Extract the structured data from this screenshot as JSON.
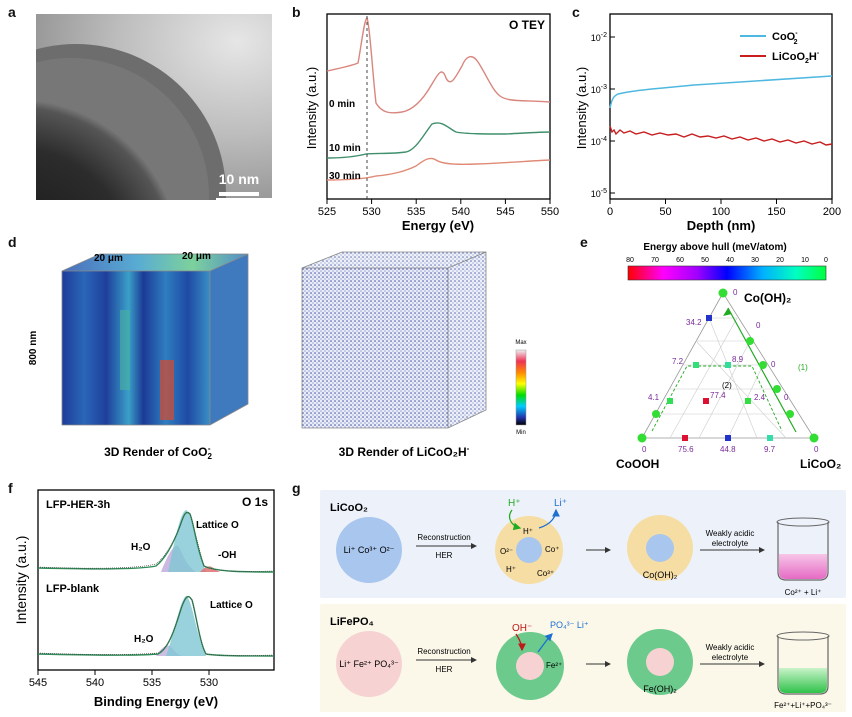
{
  "panel_labels": {
    "a": "a",
    "b": "b",
    "c": "c",
    "d": "d",
    "e": "e",
    "f": "f",
    "g": "g"
  },
  "panel_a": {
    "scale_bar": "10 nm"
  },
  "panel_b": {
    "title": "O TEY",
    "xlabel": "Energy (eV)",
    "ylabel": "Intensity (a.u.)",
    "curve_labels": [
      "0 min",
      "10 min",
      "30 min"
    ],
    "xticks": [
      "525",
      "530",
      "535",
      "540",
      "545",
      "550"
    ]
  },
  "panel_c": {
    "xlabel": "Depth (nm)",
    "ylabel": "Intensity (a.u.)",
    "xticks": [
      "0",
      "50",
      "100",
      "150",
      "200"
    ],
    "legend": {
      "a": "CoO",
      "a_sup": "2",
      "a_sup2": "-",
      "b": "LiCoO",
      "b_sub": "2",
      "b_rest": "H",
      "b_sup": "-"
    },
    "colors": {
      "a": "#4fb8e0",
      "b": "#c81e1e"
    }
  },
  "panel_d": {
    "dim1": "20 μm",
    "dim2": "20 μm",
    "dim3": "800 nm",
    "caption1": "3D Render of CoO",
    "caption1_sub": "2",
    "caption1_sup": "-",
    "caption2": "3D Render of LiCoO₂H",
    "caption2_sup": "-",
    "colorbar_max": "Max",
    "colorbar_min": "Min"
  },
  "panel_e": {
    "title": "Energy above hull (meV/atom)",
    "ticks": [
      "80",
      "70",
      "60",
      "50",
      "40",
      "30",
      "20",
      "10",
      "0"
    ],
    "vertex_top": "Co(OH)₂",
    "vertex_left": "CoOOH",
    "vertex_right": "LiCoO₂",
    "values": {
      "v1": "34.2",
      "v2": "7.2",
      "v3": "8.9",
      "v4": "4.1",
      "v5": "77.4",
      "v6": "2.4",
      "v7": "75.6",
      "v8": "44.8",
      "v9": "9.7"
    },
    "zeros": "0",
    "path1": "(1)",
    "path2": "(2)"
  },
  "panel_f": {
    "title": "O 1s",
    "sample1": "LFP-HER-3h",
    "sample2": "LFP-blank",
    "lattice": "Lattice O",
    "h2o": "H₂O",
    "oh": "-OH",
    "xlabel": "Binding Energy (eV)",
    "ylabel": "Intensity (a.u.)",
    "xticks": [
      "545",
      "540",
      "535",
      "530"
    ]
  },
  "panel_g": {
    "row1": {
      "title": "LiCoO₂",
      "circle_text": "Li⁺ Co³⁺ O²⁻",
      "arrow_top": "Reconstruction",
      "arrow_bottom": "HER",
      "h_plus_in": "H⁺",
      "li_out": "Li⁺",
      "inner_h": "H⁺",
      "o_label": "O²⁻",
      "co_label": "Co⁺",
      "co3_label": "Co³⁺",
      "h_label": "H⁺",
      "product": "Co(OH)₂",
      "treat_top": "Weakly acidic",
      "treat_bottom": "electrolyte",
      "result": "Co²⁺ + Li⁺"
    },
    "row2": {
      "title": "LiFePO₄",
      "circle_text": "Li⁺ Fe²⁺ PO₄³⁻",
      "arrow_top": "Reconstruction",
      "arrow_bottom": "HER",
      "oh_in": "OH⁻",
      "po4_out": "PO₄³⁻ Li⁺",
      "fe_label": "Fe²⁺",
      "product": "Fe(OH)₂",
      "treat_top": "Weakly acidic",
      "treat_bottom": "electrolyte",
      "result": "Fe²⁺+Li⁺+PO₄³⁻"
    }
  }
}
